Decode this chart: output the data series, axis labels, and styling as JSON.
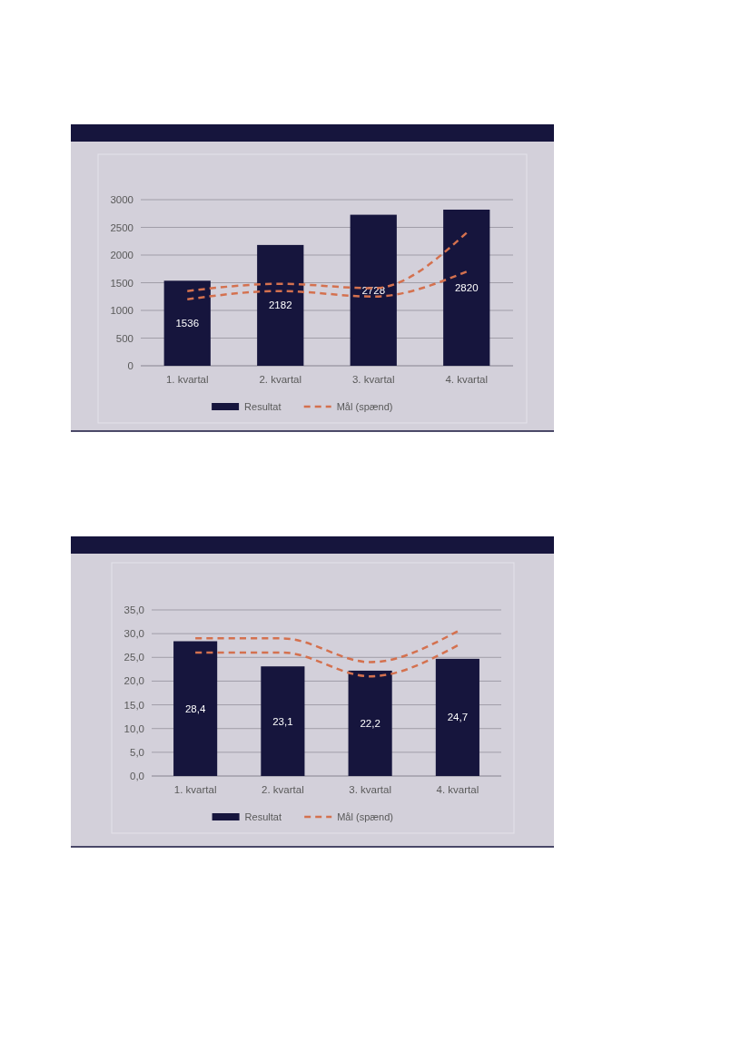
{
  "chart_data": [
    {
      "type": "bar",
      "categories": [
        "1. kvartal",
        "2. kvartal",
        "3. kvartal",
        "4. kvartal"
      ],
      "ylim": [
        0,
        3000
      ],
      "yticks": [
        0,
        500,
        1000,
        1500,
        2000,
        2500,
        3000
      ],
      "grid": "y",
      "legend": "bottom",
      "series": [
        {
          "name": "Resultat",
          "color": "#16153d",
          "values": [
            1536,
            2182,
            2728,
            2820
          ],
          "value_labels": [
            "1536",
            "2182",
            "2728",
            "2820"
          ]
        },
        {
          "name": "Mål (spænd)",
          "type": "line",
          "line_style": "dashed",
          "marker": "none",
          "color": "#d4714f",
          "values": [
            1350,
            1480,
            1400,
            2400
          ]
        },
        {
          "type": "line",
          "line_style": "dashed",
          "marker": "none",
          "color": "#d4714f",
          "values": [
            1200,
            1350,
            1250,
            1700
          ]
        }
      ]
    },
    {
      "type": "bar",
      "categories": [
        "1. kvartal",
        "2. kvartal",
        "3. kvartal",
        "4. kvartal"
      ],
      "ylim": [
        0,
        35
      ],
      "yticks": [
        {
          "value": 0,
          "label": "0,0"
        },
        {
          "value": 5,
          "label": "5,0"
        },
        {
          "value": 10,
          "label": "10,0"
        },
        {
          "value": 15,
          "label": "15,0"
        },
        {
          "value": 20,
          "label": "20,0"
        },
        {
          "value": 25,
          "label": "25,0"
        },
        {
          "value": 30,
          "label": "30,0"
        },
        {
          "value": 35,
          "label": "35,0"
        }
      ],
      "grid": "y",
      "legend": "bottom",
      "series": [
        {
          "name": "Resultat",
          "color": "#16153d",
          "values": [
            28.4,
            23.1,
            22.2,
            24.7
          ],
          "value_labels": [
            "28,4",
            "23,1",
            "22,2",
            "24,7"
          ]
        },
        {
          "name": "Mål (spænd)",
          "type": "line",
          "line_style": "dashed",
          "marker": "none",
          "color": "#d4714f",
          "values": [
            29,
            29,
            24,
            30.5
          ]
        },
        {
          "type": "line",
          "line_style": "dashed",
          "marker": "none",
          "color": "#d4714f",
          "values": [
            26,
            26,
            21,
            27.5
          ]
        }
      ]
    }
  ]
}
